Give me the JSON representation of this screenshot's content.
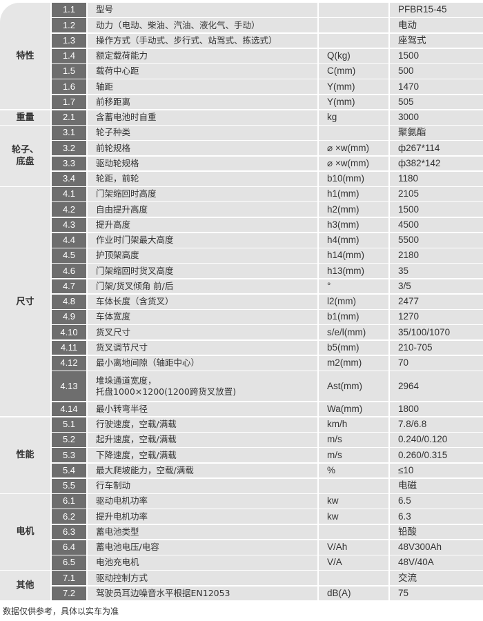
{
  "groups": [
    {
      "category": "特性",
      "rows": [
        {
          "no": "1.1",
          "item": "型号",
          "unit": "",
          "value": "PFBR15-45"
        },
        {
          "no": "1.2",
          "item": "动力（电动、柴油、汽油、液化气、手动）",
          "unit": "",
          "value": "电动"
        },
        {
          "no": "1.3",
          "item": "操作方式（手动式、步行式、站驾式、拣选式）",
          "unit": "",
          "value": "座驾式"
        },
        {
          "no": "1.4",
          "item": "额定载荷能力",
          "unit": "Q(kg)",
          "value": "1500"
        },
        {
          "no": "1.5",
          "item": "载荷中心距",
          "unit": "C(mm)",
          "value": "500"
        },
        {
          "no": "1.6",
          "item": "轴距",
          "unit": "Y(mm)",
          "value": "1470"
        },
        {
          "no": "1.7",
          "item": "前移距离",
          "unit": "Y(mm)",
          "value": "505"
        }
      ]
    },
    {
      "category": "重量",
      "rows": [
        {
          "no": "2.1",
          "item": "含蓄电池时自重",
          "unit": "kg",
          "value": "3000"
        }
      ]
    },
    {
      "category": "轮子、\n底盘",
      "rows": [
        {
          "no": "3.1",
          "item": "轮子种类",
          "unit": "",
          "value": "聚氨酯"
        },
        {
          "no": "3.2",
          "item": "前轮规格",
          "unit": "⌀ ×w(mm)",
          "value": "ф267*114"
        },
        {
          "no": "3.3",
          "item": "驱动轮规格",
          "unit": "⌀ ×w(mm)",
          "value": "ф382*142"
        },
        {
          "no": "3.4",
          "item": "轮距，前轮",
          "unit": "b10(mm)",
          "value": "1180"
        }
      ]
    },
    {
      "category": "尺寸",
      "rows": [
        {
          "no": "4.1",
          "item": "门架缩回时高度",
          "unit": "h1(mm)",
          "value": "2105"
        },
        {
          "no": "4.2",
          "item": "自由提升高度",
          "unit": "h2(mm)",
          "value": "1500"
        },
        {
          "no": "4.3",
          "item": "提升高度",
          "unit": "h3(mm)",
          "value": "4500"
        },
        {
          "no": "4.4",
          "item": "作业时门架最大高度",
          "unit": "h4(mm)",
          "value": "5500"
        },
        {
          "no": "4.5",
          "item": "护顶架高度",
          "unit": "h14(mm)",
          "value": "2180"
        },
        {
          "no": "4.6",
          "item": "门架缩回时货叉高度",
          "unit": "h13(mm)",
          "value": "35"
        },
        {
          "no": "4.7",
          "item": "门架/货叉倾角 前/后",
          "unit": "°",
          "value": "3/5"
        },
        {
          "no": "4.8",
          "item": "车体长度（含货叉）",
          "unit": "l2(mm)",
          "value": "2477"
        },
        {
          "no": "4.9",
          "item": "车体宽度",
          "unit": "b1(mm)",
          "value": "1270"
        },
        {
          "no": "4.10",
          "item": "货叉尺寸",
          "unit": "s/e/l(mm)",
          "value": "35/100/1070"
        },
        {
          "no": "4.11",
          "item": "货叉调节尺寸",
          "unit": "b5(mm)",
          "value": "210-705"
        },
        {
          "no": "4.12",
          "item": "最小离地间隙（轴距中心）",
          "unit": "m2(mm)",
          "value": "70"
        },
        {
          "no": "4.13",
          "item": "堆垛通道宽度，\n托盘1000×1200(1200跨货叉放置)",
          "unit": "Ast(mm)",
          "value": "2964",
          "tall": true
        },
        {
          "no": "4.14",
          "item": "最小转弯半径",
          "unit": "Wa(mm)",
          "value": "1800"
        }
      ]
    },
    {
      "category": "性能",
      "rows": [
        {
          "no": "5.1",
          "item": "行驶速度，空载/满载",
          "unit": "km/h",
          "value": "7.8/6.8"
        },
        {
          "no": "5.2",
          "item": "起升速度，空载/满载",
          "unit": "m/s",
          "value": "0.240/0.120"
        },
        {
          "no": "5.3",
          "item": "下降速度，空载/满载",
          "unit": "m/s",
          "value": "0.260/0.315"
        },
        {
          "no": "5.4",
          "item": "最大爬坡能力，空载/满载",
          "unit": "%",
          "value": "≤10"
        },
        {
          "no": "5.5",
          "item": "行车制动",
          "unit": "",
          "value": "电磁"
        }
      ]
    },
    {
      "category": "电机",
      "rows": [
        {
          "no": "6.1",
          "item": "驱动电机功率",
          "unit": "kw",
          "value": "6.5"
        },
        {
          "no": "6.2",
          "item": "提升电机功率",
          "unit": "kw",
          "value": "6.3"
        },
        {
          "no": "6.3",
          "item": "蓄电池类型",
          "unit": "",
          "value": "铅酸"
        },
        {
          "no": "6.4",
          "item": "蓄电池电压/电容",
          "unit": "V/Ah",
          "value": "48V300Ah"
        },
        {
          "no": "6.5",
          "item": "电池充电机",
          "unit": "V/A",
          "value": "48V/40A"
        }
      ]
    },
    {
      "category": "其他",
      "rows": [
        {
          "no": "7.1",
          "item": "驱动控制方式",
          "unit": "",
          "value": "交流"
        },
        {
          "no": "7.2",
          "item": "驾驶员耳边噪音水平根据EN12053",
          "unit": "dB(A)",
          "value": "75"
        }
      ]
    }
  ],
  "footnote": "数据仅供参考，具体以实车为准"
}
